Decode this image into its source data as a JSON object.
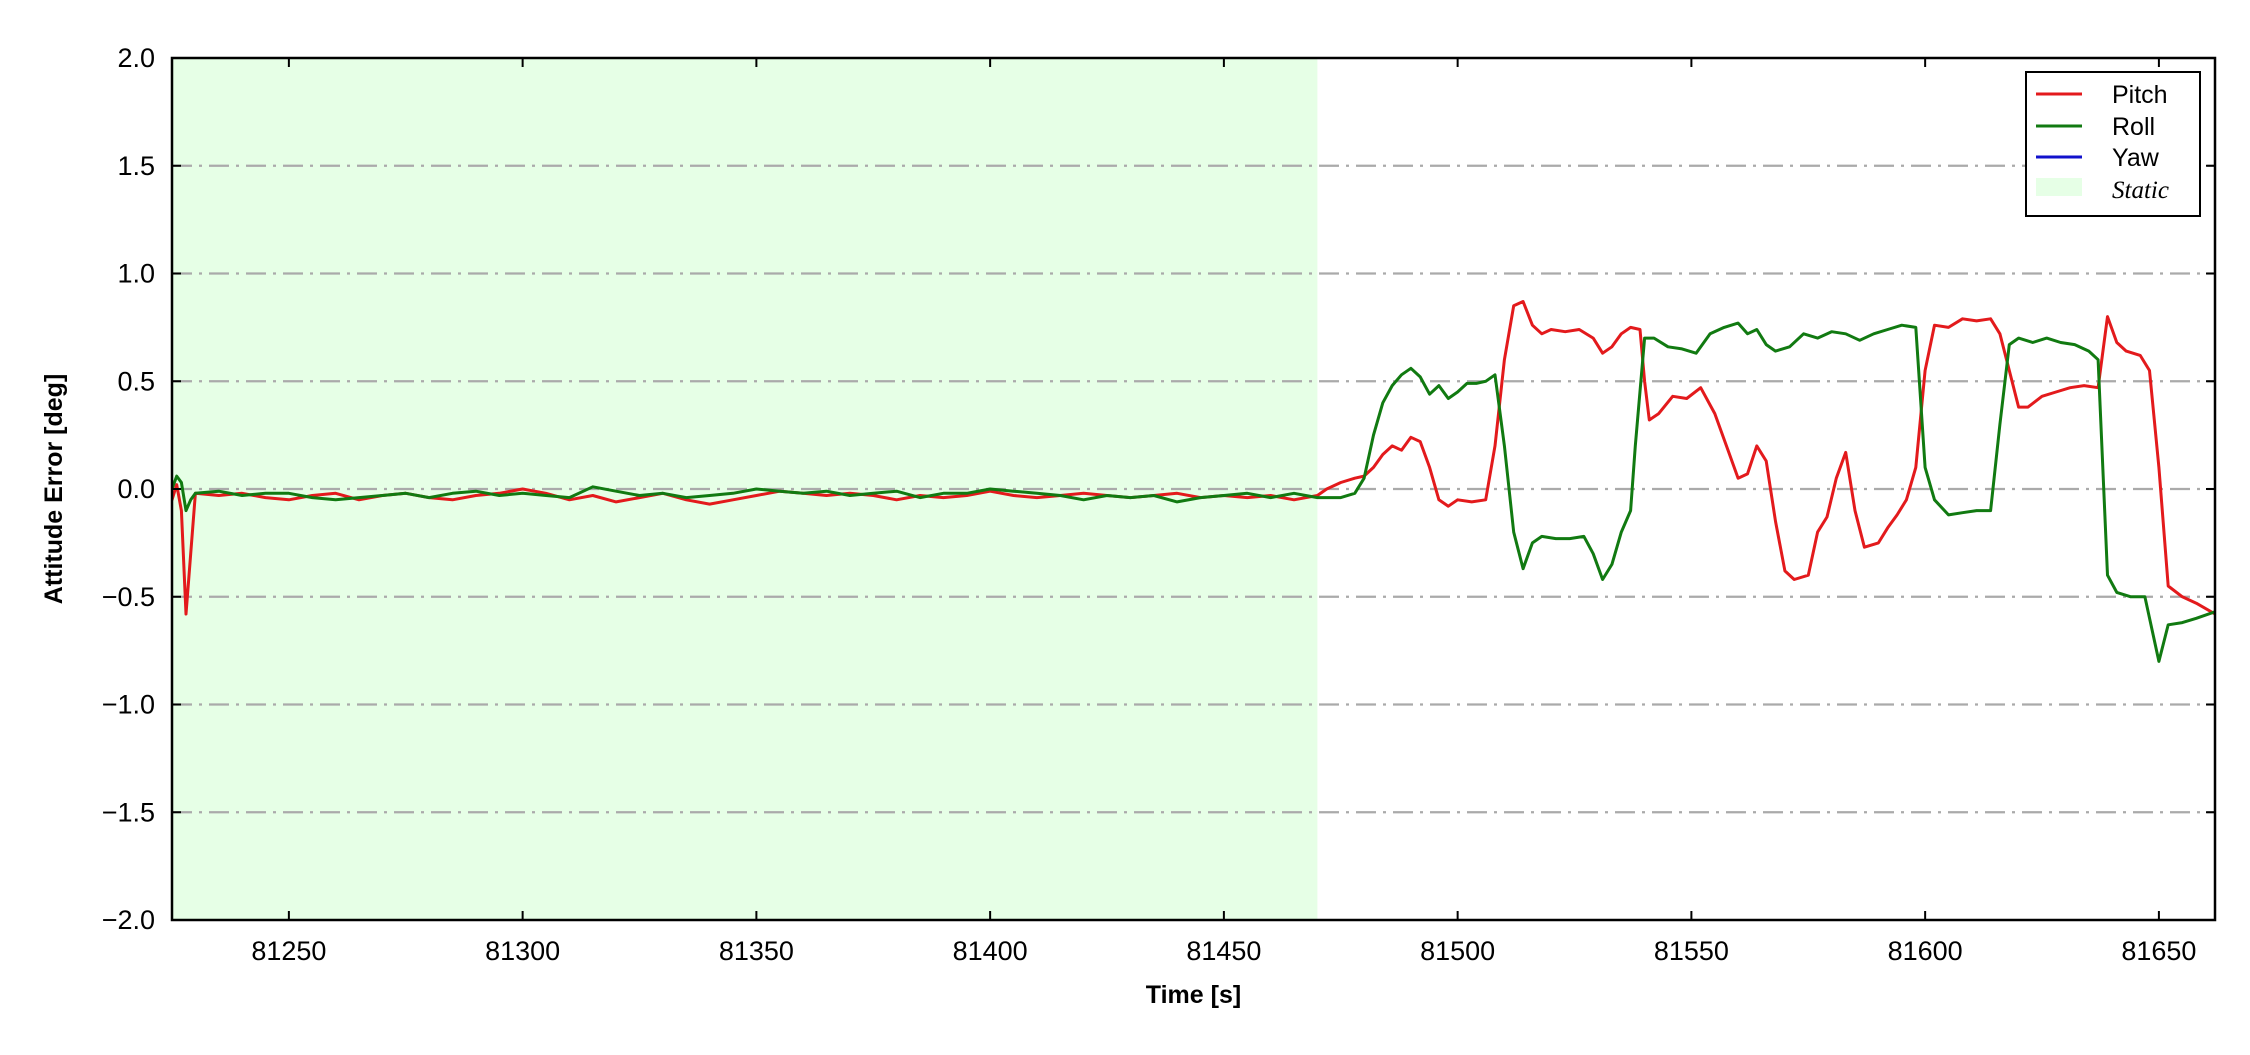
{
  "chart_data": {
    "type": "line",
    "title": "",
    "xlabel": "Time [s]",
    "ylabel": "Attitude Error [deg]",
    "xlim": [
      81225,
      81662
    ],
    "ylim": [
      -2.0,
      2.0
    ],
    "x_ticks": [
      81250,
      81300,
      81350,
      81400,
      81450,
      81500,
      81550,
      81600,
      81650
    ],
    "x_tick_labels": [
      "81250",
      "81300",
      "81350",
      "81400",
      "81450",
      "81500",
      "81550",
      "81600",
      "81650"
    ],
    "y_ticks": [
      -2.0,
      -1.5,
      -1.0,
      -0.5,
      0.0,
      0.5,
      1.0,
      1.5,
      2.0
    ],
    "y_tick_labels": [
      "−2.0",
      "−1.5",
      "−1.0",
      "−0.5",
      "0.0",
      "0.5",
      "1.0",
      "1.5",
      "2.0"
    ],
    "grid": "horizontal dash-dot",
    "legend_position": "top-right",
    "shaded_region": {
      "name": "Static",
      "x_start": 81225,
      "x_end": 81470,
      "color": "#e6ffe6"
    },
    "series": [
      {
        "name": "Pitch",
        "color": "#e31a1c",
        "points": [
          [
            81225,
            -0.05
          ],
          [
            81226,
            0.02
          ],
          [
            81227,
            -0.1
          ],
          [
            81228,
            -0.58
          ],
          [
            81229,
            -0.3
          ],
          [
            81230,
            -0.02
          ],
          [
            81235,
            -0.03
          ],
          [
            81240,
            -0.02
          ],
          [
            81245,
            -0.04
          ],
          [
            81250,
            -0.05
          ],
          [
            81255,
            -0.03
          ],
          [
            81260,
            -0.02
          ],
          [
            81265,
            -0.05
          ],
          [
            81270,
            -0.03
          ],
          [
            81275,
            -0.02
          ],
          [
            81280,
            -0.04
          ],
          [
            81285,
            -0.05
          ],
          [
            81290,
            -0.03
          ],
          [
            81295,
            -0.02
          ],
          [
            81300,
            0.0
          ],
          [
            81305,
            -0.02
          ],
          [
            81310,
            -0.05
          ],
          [
            81315,
            -0.03
          ],
          [
            81320,
            -0.06
          ],
          [
            81325,
            -0.04
          ],
          [
            81330,
            -0.02
          ],
          [
            81335,
            -0.05
          ],
          [
            81340,
            -0.07
          ],
          [
            81345,
            -0.05
          ],
          [
            81350,
            -0.03
          ],
          [
            81355,
            -0.01
          ],
          [
            81360,
            -0.02
          ],
          [
            81365,
            -0.03
          ],
          [
            81370,
            -0.02
          ],
          [
            81375,
            -0.03
          ],
          [
            81380,
            -0.05
          ],
          [
            81385,
            -0.03
          ],
          [
            81390,
            -0.04
          ],
          [
            81395,
            -0.03
          ],
          [
            81400,
            -0.01
          ],
          [
            81405,
            -0.03
          ],
          [
            81410,
            -0.04
          ],
          [
            81415,
            -0.03
          ],
          [
            81420,
            -0.02
          ],
          [
            81425,
            -0.03
          ],
          [
            81430,
            -0.04
          ],
          [
            81435,
            -0.03
          ],
          [
            81440,
            -0.02
          ],
          [
            81445,
            -0.04
          ],
          [
            81450,
            -0.03
          ],
          [
            81455,
            -0.04
          ],
          [
            81460,
            -0.03
          ],
          [
            81465,
            -0.05
          ],
          [
            81470,
            -0.03
          ],
          [
            81472,
            0.0
          ],
          [
            81475,
            0.03
          ],
          [
            81478,
            0.05
          ],
          [
            81480,
            0.06
          ],
          [
            81482,
            0.1
          ],
          [
            81484,
            0.16
          ],
          [
            81486,
            0.2
          ],
          [
            81488,
            0.18
          ],
          [
            81490,
            0.24
          ],
          [
            81492,
            0.22
          ],
          [
            81494,
            0.1
          ],
          [
            81496,
            -0.05
          ],
          [
            81498,
            -0.08
          ],
          [
            81500,
            -0.05
          ],
          [
            81503,
            -0.06
          ],
          [
            81506,
            -0.05
          ],
          [
            81508,
            0.2
          ],
          [
            81510,
            0.6
          ],
          [
            81512,
            0.85
          ],
          [
            81514,
            0.87
          ],
          [
            81516,
            0.76
          ],
          [
            81518,
            0.72
          ],
          [
            81520,
            0.74
          ],
          [
            81523,
            0.73
          ],
          [
            81526,
            0.74
          ],
          [
            81529,
            0.7
          ],
          [
            81531,
            0.63
          ],
          [
            81533,
            0.66
          ],
          [
            81535,
            0.72
          ],
          [
            81537,
            0.75
          ],
          [
            81539,
            0.74
          ],
          [
            81540,
            0.5
          ],
          [
            81541,
            0.32
          ],
          [
            81543,
            0.35
          ],
          [
            81546,
            0.43
          ],
          [
            81549,
            0.42
          ],
          [
            81552,
            0.47
          ],
          [
            81555,
            0.35
          ],
          [
            81558,
            0.17
          ],
          [
            81560,
            0.05
          ],
          [
            81562,
            0.07
          ],
          [
            81564,
            0.2
          ],
          [
            81566,
            0.13
          ],
          [
            81568,
            -0.15
          ],
          [
            81570,
            -0.38
          ],
          [
            81572,
            -0.42
          ],
          [
            81575,
            -0.4
          ],
          [
            81577,
            -0.2
          ],
          [
            81579,
            -0.13
          ],
          [
            81581,
            0.05
          ],
          [
            81583,
            0.17
          ],
          [
            81585,
            -0.1
          ],
          [
            81587,
            -0.27
          ],
          [
            81590,
            -0.25
          ],
          [
            81592,
            -0.18
          ],
          [
            81594,
            -0.12
          ],
          [
            81596,
            -0.05
          ],
          [
            81598,
            0.1
          ],
          [
            81600,
            0.55
          ],
          [
            81602,
            0.76
          ],
          [
            81605,
            0.75
          ],
          [
            81608,
            0.79
          ],
          [
            81611,
            0.78
          ],
          [
            81614,
            0.79
          ],
          [
            81616,
            0.72
          ],
          [
            81618,
            0.55
          ],
          [
            81620,
            0.38
          ],
          [
            81622,
            0.38
          ],
          [
            81625,
            0.43
          ],
          [
            81628,
            0.45
          ],
          [
            81631,
            0.47
          ],
          [
            81634,
            0.48
          ],
          [
            81637,
            0.47
          ],
          [
            81639,
            0.8
          ],
          [
            81641,
            0.68
          ],
          [
            81643,
            0.64
          ],
          [
            81646,
            0.62
          ],
          [
            81648,
            0.55
          ],
          [
            81650,
            0.1
          ],
          [
            81652,
            -0.45
          ],
          [
            81655,
            -0.5
          ],
          [
            81658,
            -0.53
          ],
          [
            81662,
            -0.58
          ]
        ]
      },
      {
        "name": "Roll",
        "color": "#117a11",
        "points": [
          [
            81225,
            0.0
          ],
          [
            81226,
            0.06
          ],
          [
            81227,
            0.03
          ],
          [
            81228,
            -0.1
          ],
          [
            81229,
            -0.05
          ],
          [
            81230,
            -0.02
          ],
          [
            81235,
            -0.01
          ],
          [
            81240,
            -0.03
          ],
          [
            81245,
            -0.02
          ],
          [
            81250,
            -0.02
          ],
          [
            81255,
            -0.04
          ],
          [
            81260,
            -0.05
          ],
          [
            81265,
            -0.04
          ],
          [
            81270,
            -0.03
          ],
          [
            81275,
            -0.02
          ],
          [
            81280,
            -0.04
          ],
          [
            81285,
            -0.02
          ],
          [
            81290,
            -0.01
          ],
          [
            81295,
            -0.03
          ],
          [
            81300,
            -0.02
          ],
          [
            81305,
            -0.03
          ],
          [
            81310,
            -0.04
          ],
          [
            81315,
            0.01
          ],
          [
            81320,
            -0.01
          ],
          [
            81325,
            -0.03
          ],
          [
            81330,
            -0.02
          ],
          [
            81335,
            -0.04
          ],
          [
            81340,
            -0.03
          ],
          [
            81345,
            -0.02
          ],
          [
            81350,
            0.0
          ],
          [
            81355,
            -0.01
          ],
          [
            81360,
            -0.02
          ],
          [
            81365,
            -0.01
          ],
          [
            81370,
            -0.03
          ],
          [
            81375,
            -0.02
          ],
          [
            81380,
            -0.01
          ],
          [
            81385,
            -0.04
          ],
          [
            81390,
            -0.02
          ],
          [
            81395,
            -0.02
          ],
          [
            81400,
            0.0
          ],
          [
            81405,
            -0.01
          ],
          [
            81410,
            -0.02
          ],
          [
            81415,
            -0.03
          ],
          [
            81420,
            -0.05
          ],
          [
            81425,
            -0.03
          ],
          [
            81430,
            -0.04
          ],
          [
            81435,
            -0.03
          ],
          [
            81440,
            -0.06
          ],
          [
            81445,
            -0.04
          ],
          [
            81450,
            -0.03
          ],
          [
            81455,
            -0.02
          ],
          [
            81460,
            -0.04
          ],
          [
            81465,
            -0.02
          ],
          [
            81470,
            -0.04
          ],
          [
            81475,
            -0.04
          ],
          [
            81478,
            -0.02
          ],
          [
            81480,
            0.05
          ],
          [
            81482,
            0.25
          ],
          [
            81484,
            0.4
          ],
          [
            81486,
            0.48
          ],
          [
            81488,
            0.53
          ],
          [
            81490,
            0.56
          ],
          [
            81492,
            0.52
          ],
          [
            81494,
            0.44
          ],
          [
            81496,
            0.48
          ],
          [
            81498,
            0.42
          ],
          [
            81500,
            0.45
          ],
          [
            81502,
            0.49
          ],
          [
            81504,
            0.49
          ],
          [
            81506,
            0.5
          ],
          [
            81508,
            0.53
          ],
          [
            81510,
            0.2
          ],
          [
            81512,
            -0.2
          ],
          [
            81514,
            -0.37
          ],
          [
            81516,
            -0.25
          ],
          [
            81518,
            -0.22
          ],
          [
            81521,
            -0.23
          ],
          [
            81524,
            -0.23
          ],
          [
            81527,
            -0.22
          ],
          [
            81529,
            -0.3
          ],
          [
            81531,
            -0.42
          ],
          [
            81533,
            -0.35
          ],
          [
            81535,
            -0.2
          ],
          [
            81537,
            -0.1
          ],
          [
            81538,
            0.2
          ],
          [
            81540,
            0.7
          ],
          [
            81542,
            0.7
          ],
          [
            81545,
            0.66
          ],
          [
            81548,
            0.65
          ],
          [
            81551,
            0.63
          ],
          [
            81554,
            0.72
          ],
          [
            81557,
            0.75
          ],
          [
            81560,
            0.77
          ],
          [
            81562,
            0.72
          ],
          [
            81564,
            0.74
          ],
          [
            81566,
            0.67
          ],
          [
            81568,
            0.64
          ],
          [
            81571,
            0.66
          ],
          [
            81574,
            0.72
          ],
          [
            81577,
            0.7
          ],
          [
            81580,
            0.73
          ],
          [
            81583,
            0.72
          ],
          [
            81586,
            0.69
          ],
          [
            81589,
            0.72
          ],
          [
            81592,
            0.74
          ],
          [
            81595,
            0.76
          ],
          [
            81598,
            0.75
          ],
          [
            81600,
            0.1
          ],
          [
            81602,
            -0.05
          ],
          [
            81605,
            -0.12
          ],
          [
            81608,
            -0.11
          ],
          [
            81611,
            -0.1
          ],
          [
            81614,
            -0.1
          ],
          [
            81616,
            0.3
          ],
          [
            81618,
            0.67
          ],
          [
            81620,
            0.7
          ],
          [
            81623,
            0.68
          ],
          [
            81626,
            0.7
          ],
          [
            81629,
            0.68
          ],
          [
            81632,
            0.67
          ],
          [
            81635,
            0.64
          ],
          [
            81637,
            0.6
          ],
          [
            81639,
            -0.4
          ],
          [
            81641,
            -0.48
          ],
          [
            81644,
            -0.5
          ],
          [
            81647,
            -0.5
          ],
          [
            81650,
            -0.8
          ],
          [
            81652,
            -0.63
          ],
          [
            81655,
            -0.62
          ],
          [
            81658,
            -0.6
          ],
          [
            81662,
            -0.57
          ]
        ]
      },
      {
        "name": "Yaw",
        "color": "#1111cc",
        "points": []
      }
    ]
  }
}
